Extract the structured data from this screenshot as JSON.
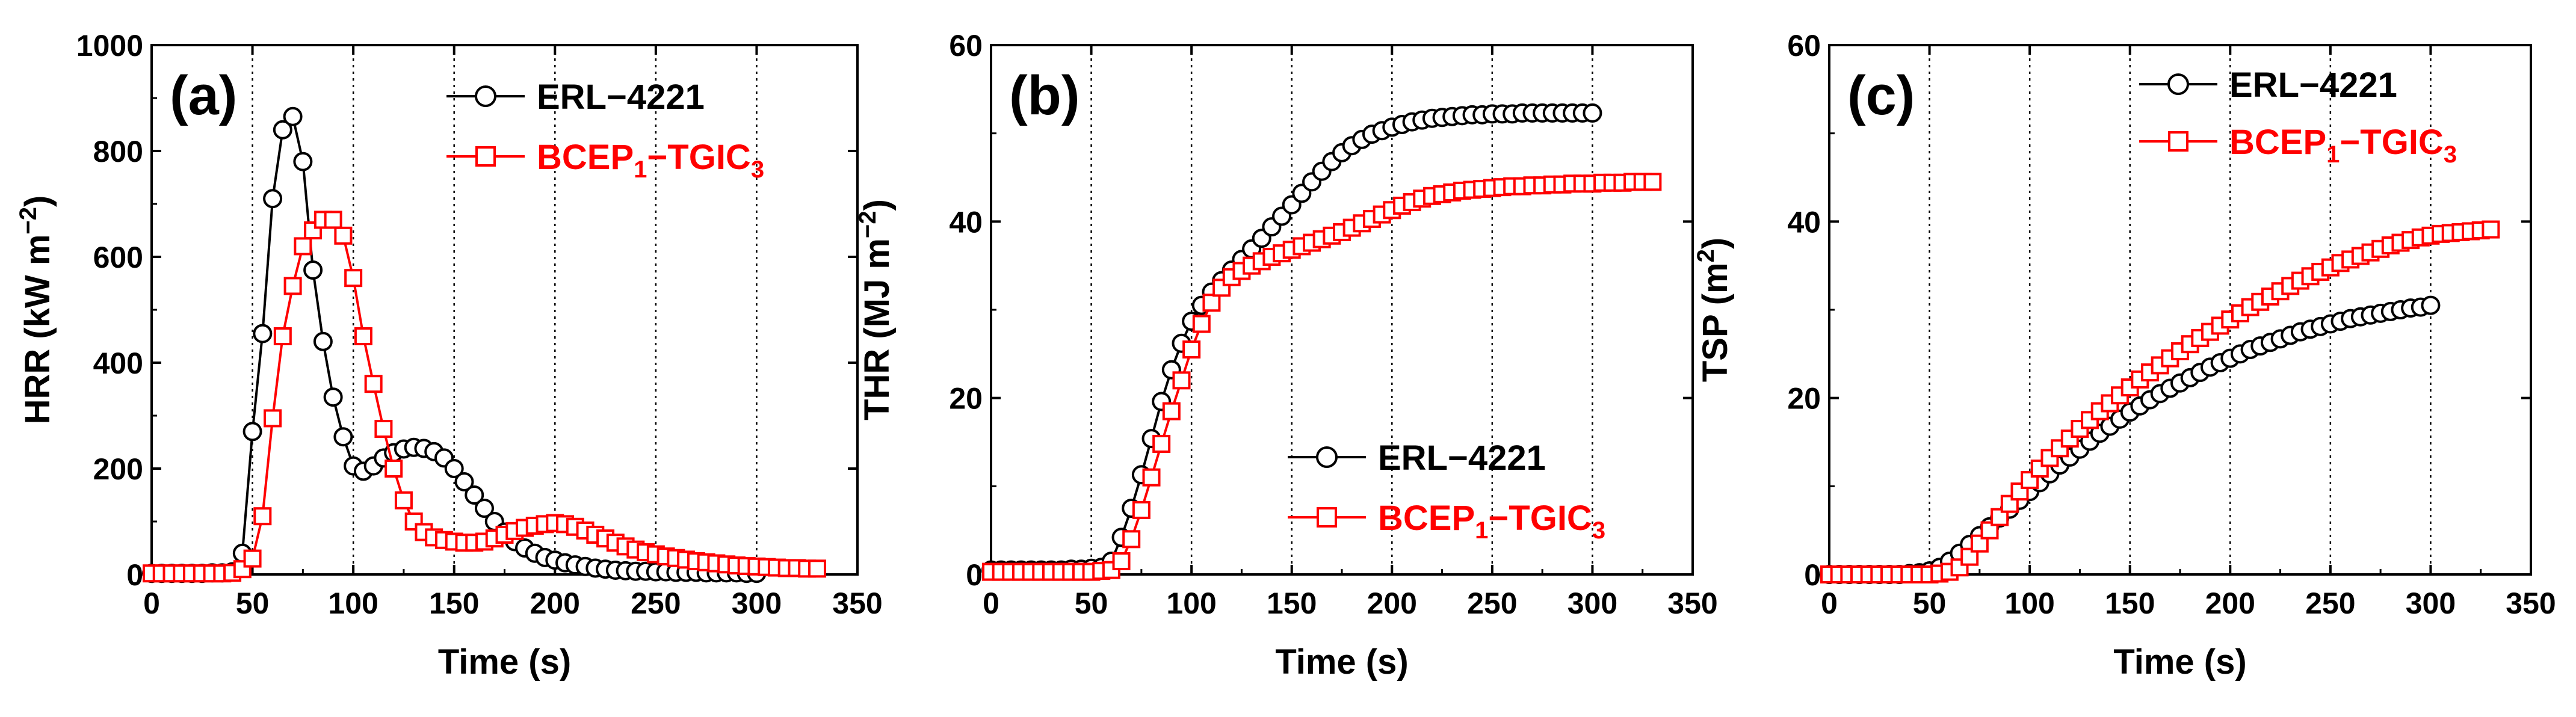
{
  "figure": {
    "colors": {
      "series1": "#000000",
      "series2": "#ff0000",
      "grid": "#000000"
    }
  },
  "chart_data": [
    {
      "type": "line",
      "panel_label": "(a)",
      "xlabel": "Time (s)",
      "ylabel_parts": [
        "HRR (kW m",
        "−2",
        ")"
      ],
      "xlim": [
        0,
        350
      ],
      "ylim": [
        0,
        1000
      ],
      "xticks": [
        0,
        50,
        100,
        150,
        200,
        250,
        300,
        350
      ],
      "yticks": [
        0,
        200,
        400,
        600,
        800,
        1000
      ],
      "vertical_grid": [
        50,
        100,
        150,
        200,
        250,
        300
      ],
      "legend": {
        "position": "top-right"
      },
      "series": [
        {
          "name": "ERL−4221",
          "name_base": "ERL−4221",
          "marker": "circle",
          "color": "#000000",
          "x": [
            0,
            5,
            10,
            15,
            20,
            25,
            30,
            35,
            40,
            45,
            50,
            55,
            60,
            65,
            70,
            75,
            80,
            85,
            90,
            95,
            100,
            105,
            110,
            115,
            120,
            125,
            130,
            135,
            140,
            145,
            150,
            155,
            160,
            165,
            170,
            175,
            180,
            185,
            190,
            195,
            200,
            205,
            210,
            215,
            220,
            225,
            230,
            235,
            240,
            245,
            250,
            255,
            260,
            265,
            270,
            275,
            280,
            285,
            290,
            295,
            300
          ],
          "y": [
            2,
            2,
            2,
            2,
            2,
            2,
            3,
            3,
            5,
            40,
            270,
            455,
            710,
            840,
            865,
            780,
            575,
            440,
            335,
            260,
            205,
            195,
            205,
            220,
            230,
            237,
            240,
            238,
            232,
            220,
            200,
            175,
            150,
            125,
            100,
            80,
            62,
            50,
            40,
            32,
            27,
            22,
            18,
            15,
            12,
            10,
            8,
            7,
            6,
            6,
            5,
            5,
            4,
            4,
            4,
            3,
            3,
            3,
            3,
            2,
            2
          ]
        },
        {
          "name": "BCEP1−TGIC3",
          "name_base": "BCEP",
          "name_sub1": "1",
          "name_mid": "−TGIC",
          "name_sub2": "3",
          "marker": "square",
          "color": "#ff0000",
          "x": [
            0,
            5,
            10,
            15,
            20,
            25,
            30,
            35,
            40,
            45,
            50,
            55,
            60,
            65,
            70,
            75,
            80,
            85,
            90,
            95,
            100,
            105,
            110,
            115,
            120,
            125,
            130,
            135,
            140,
            145,
            150,
            155,
            160,
            165,
            170,
            175,
            180,
            185,
            190,
            195,
            200,
            205,
            210,
            215,
            220,
            225,
            230,
            235,
            240,
            245,
            250,
            255,
            260,
            265,
            270,
            275,
            280,
            285,
            290,
            295,
            300,
            305,
            310,
            315,
            320,
            325,
            330
          ],
          "y": [
            2,
            2,
            2,
            2,
            2,
            2,
            2,
            2,
            3,
            10,
            30,
            110,
            295,
            450,
            545,
            620,
            650,
            670,
            670,
            640,
            560,
            450,
            360,
            275,
            200,
            140,
            100,
            80,
            70,
            65,
            62,
            60,
            60,
            62,
            68,
            75,
            82,
            88,
            92,
            95,
            97,
            95,
            90,
            83,
            75,
            68,
            60,
            53,
            47,
            42,
            38,
            34,
            31,
            28,
            25,
            23,
            21,
            19,
            17,
            16,
            15,
            14,
            13,
            12,
            12,
            11,
            11
          ]
        }
      ]
    },
    {
      "type": "line",
      "panel_label": "(b)",
      "xlabel": "Time (s)",
      "ylabel_parts": [
        "THR (MJ m",
        "−2",
        ")"
      ],
      "xlim": [
        0,
        350
      ],
      "ylim": [
        0,
        60
      ],
      "xticks": [
        0,
        50,
        100,
        150,
        200,
        250,
        300,
        350
      ],
      "yticks": [
        0,
        20,
        40,
        60
      ],
      "vertical_grid": [
        50,
        100,
        150,
        200,
        250,
        300
      ],
      "legend": {
        "position": "bottom-right"
      },
      "series": [
        {
          "name": "ERL−4221",
          "name_base": "ERL−4221",
          "marker": "circle",
          "color": "#000000",
          "x": [
            0,
            5,
            10,
            15,
            20,
            25,
            30,
            35,
            40,
            45,
            50,
            55,
            60,
            65,
            70,
            75,
            80,
            85,
            90,
            95,
            100,
            105,
            110,
            115,
            120,
            125,
            130,
            135,
            140,
            145,
            150,
            155,
            160,
            165,
            170,
            175,
            180,
            185,
            190,
            195,
            200,
            205,
            210,
            215,
            220,
            225,
            230,
            235,
            240,
            245,
            250,
            255,
            260,
            265,
            270,
            275,
            280,
            285,
            290,
            295,
            300
          ],
          "y": [
            0.5,
            0.5,
            0.5,
            0.5,
            0.5,
            0.5,
            0.5,
            0.5,
            0.6,
            0.6,
            0.7,
            0.8,
            1.5,
            4.2,
            7.5,
            11.3,
            15.4,
            19.6,
            23.2,
            26.2,
            28.7,
            30.5,
            32.0,
            33.3,
            34.5,
            35.7,
            36.9,
            38.1,
            39.4,
            40.6,
            41.9,
            43.2,
            44.5,
            45.7,
            46.8,
            47.8,
            48.6,
            49.3,
            49.9,
            50.3,
            50.7,
            51.0,
            51.3,
            51.5,
            51.7,
            51.8,
            51.9,
            52.0,
            52.1,
            52.1,
            52.2,
            52.2,
            52.2,
            52.3,
            52.3,
            52.3,
            52.3,
            52.3,
            52.3,
            52.3,
            52.3
          ]
        },
        {
          "name": "BCEP1−TGIC3",
          "name_base": "BCEP",
          "name_sub1": "1",
          "name_mid": "−TGIC",
          "name_sub2": "3",
          "marker": "square",
          "color": "#ff0000",
          "x": [
            0,
            5,
            10,
            15,
            20,
            25,
            30,
            35,
            40,
            45,
            50,
            55,
            60,
            65,
            70,
            75,
            80,
            85,
            90,
            95,
            100,
            105,
            110,
            115,
            120,
            125,
            130,
            135,
            140,
            145,
            150,
            155,
            160,
            165,
            170,
            175,
            180,
            185,
            190,
            195,
            200,
            205,
            210,
            215,
            220,
            225,
            230,
            235,
            240,
            245,
            250,
            255,
            260,
            265,
            270,
            275,
            280,
            285,
            290,
            295,
            300,
            305,
            310,
            315,
            320,
            325,
            330
          ],
          "y": [
            0.3,
            0.3,
            0.3,
            0.3,
            0.3,
            0.3,
            0.3,
            0.3,
            0.3,
            0.3,
            0.3,
            0.4,
            0.5,
            1.5,
            4.0,
            7.3,
            11.0,
            14.8,
            18.5,
            22.0,
            25.5,
            28.4,
            30.8,
            32.5,
            33.7,
            34.4,
            35.0,
            35.5,
            36.0,
            36.4,
            36.8,
            37.2,
            37.6,
            38.0,
            38.4,
            38.8,
            39.3,
            39.8,
            40.3,
            40.8,
            41.3,
            41.8,
            42.2,
            42.6,
            42.9,
            43.1,
            43.3,
            43.5,
            43.6,
            43.7,
            43.8,
            43.9,
            44.0,
            44.0,
            44.1,
            44.1,
            44.2,
            44.2,
            44.3,
            44.3,
            44.3,
            44.4,
            44.4,
            44.4,
            44.5,
            44.5,
            44.5
          ]
        }
      ]
    },
    {
      "type": "line",
      "panel_label": "(c)",
      "xlabel": "Time (s)",
      "ylabel_parts": [
        "TSP (m",
        "2",
        ")"
      ],
      "xlim": [
        0,
        350
      ],
      "ylim": [
        0,
        60
      ],
      "xticks": [
        0,
        50,
        100,
        150,
        200,
        250,
        300,
        350
      ],
      "yticks": [
        0,
        20,
        40,
        60
      ],
      "vertical_grid": [
        50,
        100,
        150,
        200,
        250,
        300
      ],
      "legend": {
        "position": "top-right"
      },
      "series": [
        {
          "name": "ERL−4221",
          "name_base": "ERL−4221",
          "marker": "circle",
          "color": "#000000",
          "x": [
            0,
            5,
            10,
            15,
            20,
            25,
            30,
            35,
            40,
            45,
            50,
            55,
            60,
            65,
            70,
            75,
            80,
            85,
            90,
            95,
            100,
            105,
            110,
            115,
            120,
            125,
            130,
            135,
            140,
            145,
            150,
            155,
            160,
            165,
            170,
            175,
            180,
            185,
            190,
            195,
            200,
            205,
            210,
            215,
            220,
            225,
            230,
            235,
            240,
            245,
            250,
            255,
            260,
            265,
            270,
            275,
            280,
            285,
            290,
            295,
            300
          ],
          "y": [
            0,
            0,
            0,
            0,
            0,
            0,
            0,
            0,
            0.1,
            0.2,
            0.4,
            0.8,
            1.5,
            2.4,
            3.4,
            4.4,
            5.4,
            6.4,
            7.4,
            8.4,
            9.4,
            10.4,
            11.4,
            12.4,
            13.3,
            14.2,
            15.1,
            16.0,
            16.8,
            17.6,
            18.4,
            19.1,
            19.8,
            20.5,
            21.1,
            21.7,
            22.3,
            22.9,
            23.5,
            24.0,
            24.5,
            25.0,
            25.5,
            25.9,
            26.3,
            26.7,
            27.1,
            27.5,
            27.8,
            28.1,
            28.4,
            28.7,
            29.0,
            29.2,
            29.4,
            29.6,
            29.8,
            30.0,
            30.2,
            30.3,
            30.5
          ]
        },
        {
          "name": "BCEP1−TGIC3",
          "name_base": "BCEP",
          "name_sub1": "1",
          "name_mid": "−TGIC",
          "name_sub2": "3",
          "marker": "square",
          "color": "#ff0000",
          "x": [
            0,
            5,
            10,
            15,
            20,
            25,
            30,
            35,
            40,
            45,
            50,
            55,
            60,
            65,
            70,
            75,
            80,
            85,
            90,
            95,
            100,
            105,
            110,
            115,
            120,
            125,
            130,
            135,
            140,
            145,
            150,
            155,
            160,
            165,
            170,
            175,
            180,
            185,
            190,
            195,
            200,
            205,
            210,
            215,
            220,
            225,
            230,
            235,
            240,
            245,
            250,
            255,
            260,
            265,
            270,
            275,
            280,
            285,
            290,
            295,
            300,
            305,
            310,
            315,
            320,
            325,
            330
          ],
          "y": [
            0,
            0,
            0,
            0,
            0,
            0,
            0,
            0,
            0,
            0,
            0,
            0.1,
            0.3,
            0.8,
            2.0,
            3.5,
            5.0,
            6.5,
            8.0,
            9.4,
            10.7,
            12.0,
            13.2,
            14.3,
            15.4,
            16.5,
            17.5,
            18.5,
            19.4,
            20.3,
            21.2,
            22.1,
            22.9,
            23.7,
            24.5,
            25.3,
            26.1,
            26.8,
            27.5,
            28.2,
            28.9,
            29.6,
            30.3,
            30.9,
            31.5,
            32.1,
            32.7,
            33.3,
            33.8,
            34.3,
            34.8,
            35.3,
            35.7,
            36.1,
            36.5,
            36.9,
            37.3,
            37.6,
            37.9,
            38.2,
            38.4,
            38.6,
            38.7,
            38.8,
            38.9,
            39.0,
            39.1
          ]
        }
      ]
    }
  ]
}
